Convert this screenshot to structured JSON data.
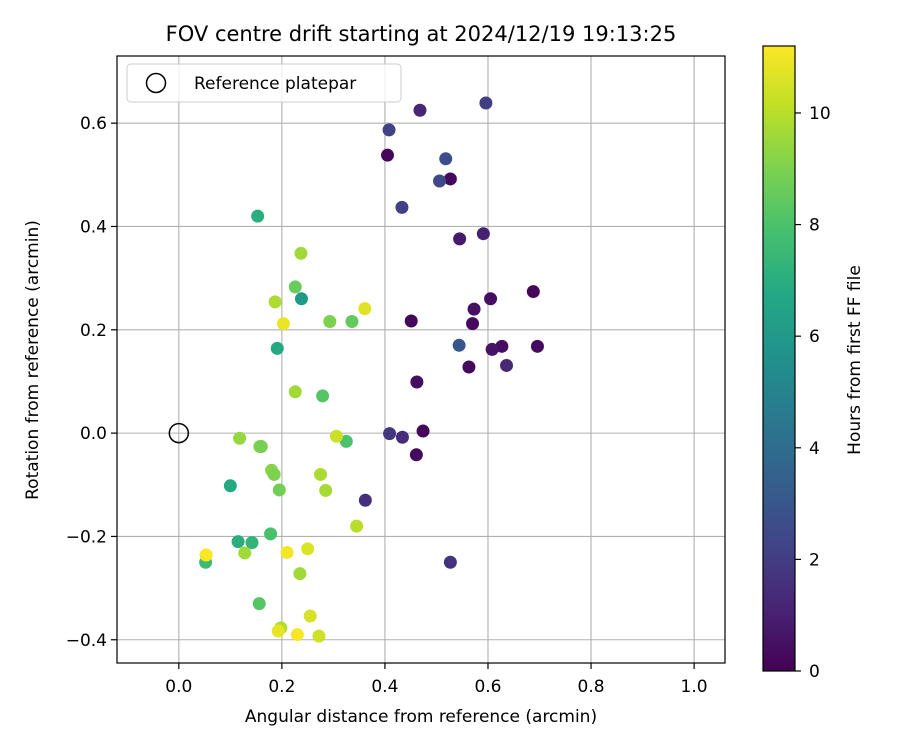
{
  "chart_data": {
    "type": "scatter",
    "title": "FOV centre drift starting at 2024/12/19 19:13:25",
    "xlabel": "Angular distance from reference (arcmin)",
    "ylabel": "Rotation from reference (arcmin)",
    "xlim": [
      -0.12,
      1.06
    ],
    "ylim": [
      -0.445,
      0.73
    ],
    "x_ticks": [
      0.0,
      0.2,
      0.4,
      0.6,
      0.8,
      1.0
    ],
    "x_tick_labels": [
      "0.0",
      "0.2",
      "0.4",
      "0.6",
      "0.8",
      "1.0"
    ],
    "y_ticks": [
      -0.4,
      -0.2,
      0.0,
      0.2,
      0.4,
      0.6
    ],
    "y_tick_labels": [
      "−0.4",
      "−0.2",
      "0.0",
      "0.2",
      "0.4",
      "0.6"
    ],
    "grid": true,
    "legend": {
      "position": "top-left",
      "entries": [
        {
          "label": "Reference platepar",
          "marker": "open-circle",
          "color": "#000000"
        }
      ]
    },
    "reference_point": {
      "x": 0.0,
      "y": 0.0
    },
    "colorbar": {
      "label": "Hours from first FF file",
      "colormap": "viridis",
      "range": [
        0,
        11.2
      ],
      "ticks": [
        0,
        2,
        4,
        6,
        8,
        10
      ],
      "tick_labels": [
        "0",
        "2",
        "4",
        "6",
        "8",
        "10"
      ]
    },
    "points": [
      {
        "x": 0.405,
        "y": 0.538,
        "h": 0.2
      },
      {
        "x": 0.527,
        "y": 0.492,
        "h": 0.3
      },
      {
        "x": 0.688,
        "y": 0.274,
        "h": 0.2
      },
      {
        "x": 0.696,
        "y": 0.168,
        "h": 0.3
      },
      {
        "x": 0.605,
        "y": 0.26,
        "h": 0.4
      },
      {
        "x": 0.573,
        "y": 0.24,
        "h": 0.5
      },
      {
        "x": 0.451,
        "y": 0.217,
        "h": 0.2
      },
      {
        "x": 0.57,
        "y": 0.212,
        "h": 0.3
      },
      {
        "x": 0.627,
        "y": 0.168,
        "h": 0.4
      },
      {
        "x": 0.608,
        "y": 0.162,
        "h": 0.6
      },
      {
        "x": 0.563,
        "y": 0.128,
        "h": 0.3
      },
      {
        "x": 0.462,
        "y": 0.099,
        "h": 0.4
      },
      {
        "x": 0.474,
        "y": 0.004,
        "h": 0.2
      },
      {
        "x": 0.461,
        "y": -0.042,
        "h": 0.3
      },
      {
        "x": 0.545,
        "y": 0.376,
        "h": 0.8
      },
      {
        "x": 0.591,
        "y": 0.386,
        "h": 1.0
      },
      {
        "x": 0.468,
        "y": 0.625,
        "h": 1.2
      },
      {
        "x": 0.636,
        "y": 0.131,
        "h": 1.3
      },
      {
        "x": 0.434,
        "y": -0.008,
        "h": 1.4
      },
      {
        "x": 0.362,
        "y": -0.13,
        "h": 1.5
      },
      {
        "x": 0.527,
        "y": -0.25,
        "h": 1.6
      },
      {
        "x": 0.409,
        "y": -0.001,
        "h": 1.8
      },
      {
        "x": 0.596,
        "y": 0.639,
        "h": 2.0
      },
      {
        "x": 0.408,
        "y": 0.587,
        "h": 2.2
      },
      {
        "x": 0.433,
        "y": 0.437,
        "h": 2.1
      },
      {
        "x": 0.506,
        "y": 0.488,
        "h": 2.4
      },
      {
        "x": 0.518,
        "y": 0.531,
        "h": 2.6
      },
      {
        "x": 0.544,
        "y": 0.17,
        "h": 3.0
      },
      {
        "x": 0.238,
        "y": 0.26,
        "h": 6.0
      },
      {
        "x": 0.153,
        "y": 0.42,
        "h": 7.0
      },
      {
        "x": 0.191,
        "y": 0.164,
        "h": 6.8
      },
      {
        "x": 0.1,
        "y": -0.102,
        "h": 6.8
      },
      {
        "x": 0.115,
        "y": -0.21,
        "h": 7.0
      },
      {
        "x": 0.142,
        "y": -0.212,
        "h": 7.3
      },
      {
        "x": 0.052,
        "y": -0.25,
        "h": 7.6
      },
      {
        "x": 0.178,
        "y": -0.195,
        "h": 7.9
      },
      {
        "x": 0.156,
        "y": -0.33,
        "h": 8.2
      },
      {
        "x": 0.279,
        "y": 0.072,
        "h": 8.2
      },
      {
        "x": 0.325,
        "y": -0.016,
        "h": 8.0
      },
      {
        "x": 0.226,
        "y": 0.283,
        "h": 8.6
      },
      {
        "x": 0.336,
        "y": 0.216,
        "h": 8.5
      },
      {
        "x": 0.293,
        "y": 0.216,
        "h": 9.0
      },
      {
        "x": 0.195,
        "y": -0.11,
        "h": 8.8
      },
      {
        "x": 0.18,
        "y": -0.072,
        "h": 9.2
      },
      {
        "x": 0.185,
        "y": -0.08,
        "h": 9.0
      },
      {
        "x": 0.157,
        "y": -0.026,
        "h": 9.3
      },
      {
        "x": 0.16,
        "y": -0.026,
        "h": 8.9
      },
      {
        "x": 0.118,
        "y": -0.01,
        "h": 9.4
      },
      {
        "x": 0.226,
        "y": 0.08,
        "h": 9.6
      },
      {
        "x": 0.187,
        "y": 0.254,
        "h": 9.8
      },
      {
        "x": 0.237,
        "y": 0.348,
        "h": 9.6
      },
      {
        "x": 0.275,
        "y": -0.08,
        "h": 9.8
      },
      {
        "x": 0.285,
        "y": -0.111,
        "h": 9.7
      },
      {
        "x": 0.128,
        "y": -0.232,
        "h": 9.6
      },
      {
        "x": 0.235,
        "y": -0.272,
        "h": 9.6
      },
      {
        "x": 0.345,
        "y": -0.18,
        "h": 10.0
      },
      {
        "x": 0.306,
        "y": -0.006,
        "h": 10.3
      },
      {
        "x": 0.198,
        "y": -0.377,
        "h": 9.9
      },
      {
        "x": 0.272,
        "y": -0.393,
        "h": 10.4
      },
      {
        "x": 0.255,
        "y": -0.354,
        "h": 10.5
      },
      {
        "x": 0.25,
        "y": -0.224,
        "h": 10.6
      },
      {
        "x": 0.193,
        "y": -0.383,
        "h": 10.8
      },
      {
        "x": 0.361,
        "y": 0.241,
        "h": 10.7
      },
      {
        "x": 0.203,
        "y": 0.212,
        "h": 10.9
      },
      {
        "x": 0.21,
        "y": -0.231,
        "h": 11.0
      },
      {
        "x": 0.23,
        "y": -0.39,
        "h": 11.1
      },
      {
        "x": 0.053,
        "y": -0.236,
        "h": 11.2
      }
    ]
  }
}
